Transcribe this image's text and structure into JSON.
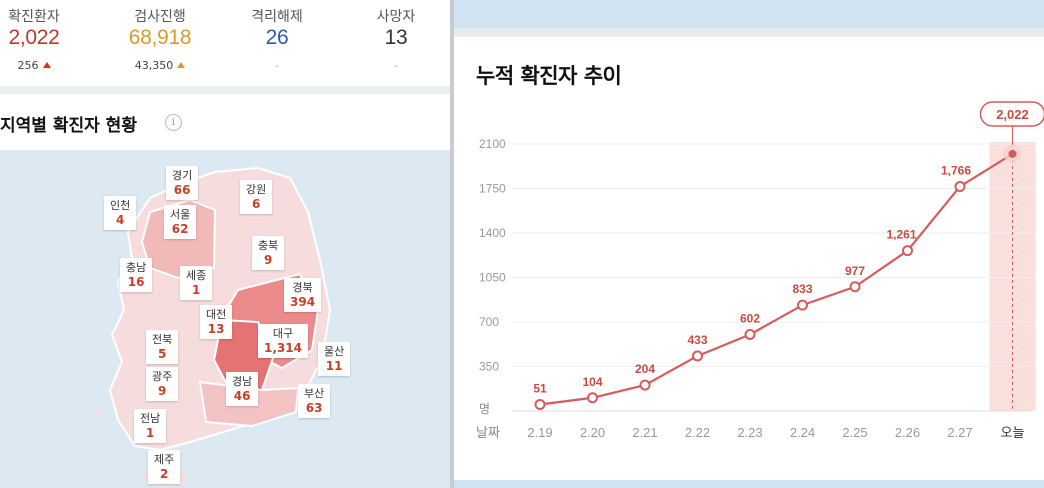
{
  "stats": [
    {
      "label": "확진환자",
      "value": "2,022",
      "change": "256",
      "up": true,
      "color": "#c0392b"
    },
    {
      "label": "검사진행",
      "value": "68,918",
      "change": "43,350",
      "up": true,
      "color": "#d89b2b"
    },
    {
      "label": "격리해제",
      "value": "26",
      "change": "-",
      "up": false,
      "color": "#2f5aa8"
    },
    {
      "label": "사망자",
      "value": "13",
      "change": "-",
      "up": false,
      "color": "#333333"
    }
  ],
  "region_section": {
    "title": "지역별 확진자 현황",
    "info_icon": "i",
    "regions": [
      {
        "name": "경기",
        "count": "66"
      },
      {
        "name": "강원",
        "count": "6"
      },
      {
        "name": "인천",
        "count": "4"
      },
      {
        "name": "서울",
        "count": "62"
      },
      {
        "name": "충북",
        "count": "9"
      },
      {
        "name": "충남",
        "count": "16"
      },
      {
        "name": "세종",
        "count": "1"
      },
      {
        "name": "경북",
        "count": "394"
      },
      {
        "name": "대전",
        "count": "13"
      },
      {
        "name": "대구",
        "count": "1,314"
      },
      {
        "name": "전북",
        "count": "5"
      },
      {
        "name": "울산",
        "count": "11"
      },
      {
        "name": "광주",
        "count": "9"
      },
      {
        "name": "경남",
        "count": "46"
      },
      {
        "name": "부산",
        "count": "63"
      },
      {
        "name": "전남",
        "count": "1"
      },
      {
        "name": "제주",
        "count": "2"
      }
    ]
  },
  "chart_data": {
    "type": "line",
    "title": "누적 확진자 추이",
    "categories": [
      "2.19",
      "2.20",
      "2.21",
      "2.22",
      "2.23",
      "2.24",
      "2.25",
      "2.26",
      "2.27",
      "오늘"
    ],
    "values": [
      51,
      104,
      204,
      433,
      602,
      833,
      977,
      1261,
      1766,
      2022
    ],
    "value_labels": [
      "51",
      "104",
      "204",
      "433",
      "602",
      "833",
      "977",
      "1,261",
      "1,766",
      "2,022"
    ],
    "y_ticks": [
      "2100",
      "1750",
      "1400",
      "1050",
      "700",
      "350"
    ],
    "y_unit": "명",
    "x_unit": "날짜",
    "ylim": [
      0,
      2100
    ],
    "grid": true,
    "line_color": "#d65c5c",
    "highlight_color": "#f9e0dd"
  }
}
